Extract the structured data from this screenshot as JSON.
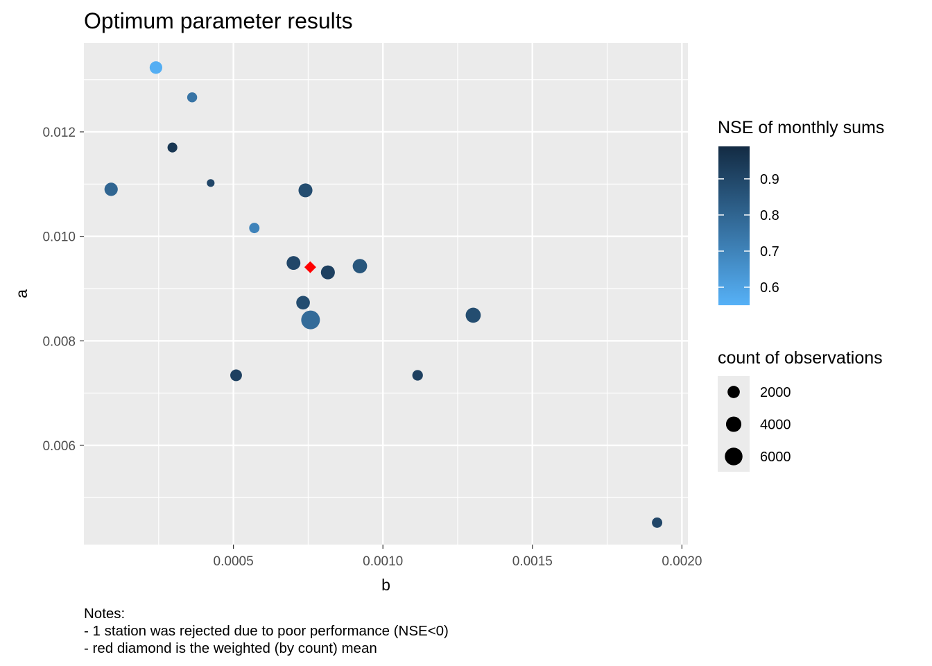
{
  "chart_data": {
    "type": "scatter",
    "title": "Optimum parameter results",
    "xlabel": "b",
    "ylabel": "a",
    "xlim": [
      0.0,
      0.00202
    ],
    "ylim": [
      0.0041,
      0.0137
    ],
    "x_ticks": [
      0.0005,
      0.001,
      0.0015,
      0.002
    ],
    "x_tick_labels": [
      "0.0005",
      "0.0010",
      "0.0015",
      "0.0020"
    ],
    "y_ticks": [
      0.006,
      0.008,
      0.01,
      0.012
    ],
    "y_tick_labels": [
      "0.006",
      "0.008",
      "0.010",
      "0.012"
    ],
    "grid": true,
    "points": [
      {
        "b": 0.000241,
        "a": 0.01323,
        "nse": 0.56,
        "count": 2200
      },
      {
        "b": 0.000362,
        "a": 0.01266,
        "nse": 0.75,
        "count": 950
      },
      {
        "b": 0.000296,
        "a": 0.0117,
        "nse": 0.95,
        "count": 900
      },
      {
        "b": 0.000424,
        "a": 0.01102,
        "nse": 0.9,
        "count": 300
      },
      {
        "b": 9.1e-05,
        "a": 0.0109,
        "nse": 0.8,
        "count": 2600
      },
      {
        "b": 0.000741,
        "a": 0.01088,
        "nse": 0.88,
        "count": 3000
      },
      {
        "b": 0.00057,
        "a": 0.01016,
        "nse": 0.7,
        "count": 1100
      },
      {
        "b": 0.000701,
        "a": 0.00949,
        "nse": 0.9,
        "count": 2900
      },
      {
        "b": 0.000816,
        "a": 0.00931,
        "nse": 0.92,
        "count": 3000
      },
      {
        "b": 0.000923,
        "a": 0.00943,
        "nse": 0.85,
        "count": 3300
      },
      {
        "b": 0.000733,
        "a": 0.00873,
        "nse": 0.88,
        "count": 2800
      },
      {
        "b": 0.000758,
        "a": 0.0084,
        "nse": 0.78,
        "count": 7000
      },
      {
        "b": 0.001302,
        "a": 0.00849,
        "nse": 0.88,
        "count": 3800
      },
      {
        "b": 0.000509,
        "a": 0.00734,
        "nse": 0.92,
        "count": 1700
      },
      {
        "b": 0.001116,
        "a": 0.00734,
        "nse": 0.92,
        "count": 1200
      },
      {
        "b": 0.001917,
        "a": 0.00452,
        "nse": 0.9,
        "count": 1100
      }
    ],
    "weighted_mean": {
      "b": 0.000757,
      "a": 0.00941,
      "color": "#ff0000",
      "shape": "diamond"
    },
    "color_legend": {
      "title": "NSE of monthly sums",
      "ticks": [
        0.6,
        0.7,
        0.8,
        0.9
      ],
      "tick_labels": [
        "0.6",
        "0.7",
        "0.8",
        "0.9"
      ],
      "range": [
        0.55,
        0.99
      ],
      "low_color": "#56b1f7",
      "high_color": "#132b43"
    },
    "size_legend": {
      "title": "count of observations",
      "breaks": [
        2000,
        4000,
        6000
      ],
      "labels": [
        "2000",
        "4000",
        "6000"
      ]
    },
    "panel_background": "#ebebeb",
    "grid_color": "#ffffff"
  },
  "notes": [
    "Notes:",
    "- 1 station was rejected due to poor performance (NSE<0)",
    "- red diamond is the weighted (by count) mean"
  ]
}
